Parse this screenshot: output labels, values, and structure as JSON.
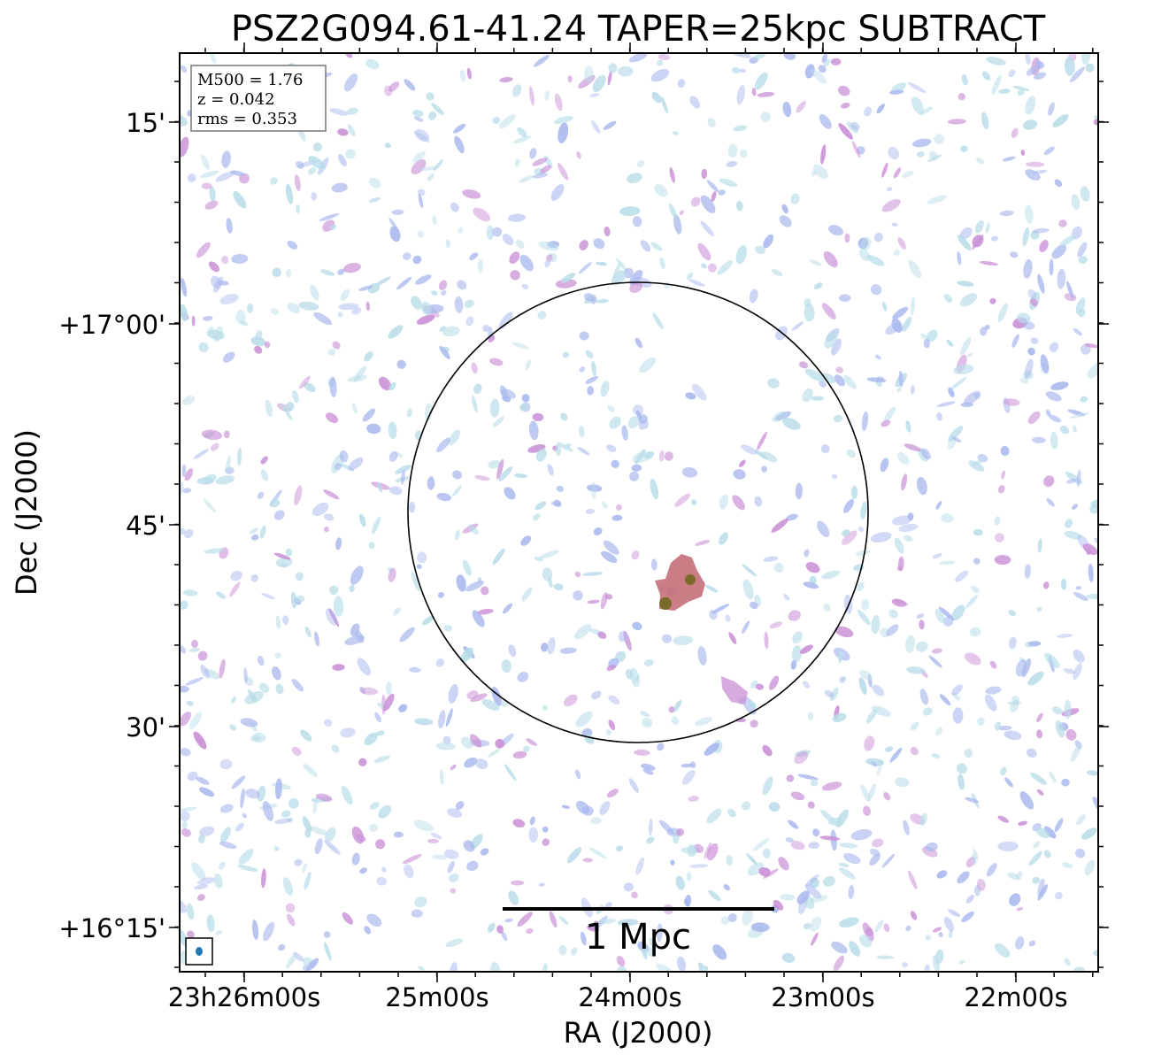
{
  "chart_data": {
    "type": "image",
    "title": "PSZ2G094.61-41.24 TAPER=25kpc SUBTRACT",
    "xlabel": "RA (J2000)",
    "ylabel": "Dec (J2000)",
    "x_tick_labels": [
      "23h26m00s",
      "25m00s",
      "24m00s",
      "23m00s",
      "22m00s"
    ],
    "y_tick_labels": [
      "15'",
      "+17°00'",
      "45'",
      "30'",
      "+16°15'"
    ],
    "info_box": [
      "M500 = 1.76",
      "z = 0.042",
      "rms = 0.353"
    ],
    "scale_bar_label": "1 Mpc",
    "colors": {
      "noise_light": "#b9dde9",
      "noise_mid": "#a9b8ee",
      "noise_strong": "#c98fd6",
      "source": "#c46f78",
      "source_core": "#7a6a2a",
      "beam": "#1f77b4"
    }
  }
}
